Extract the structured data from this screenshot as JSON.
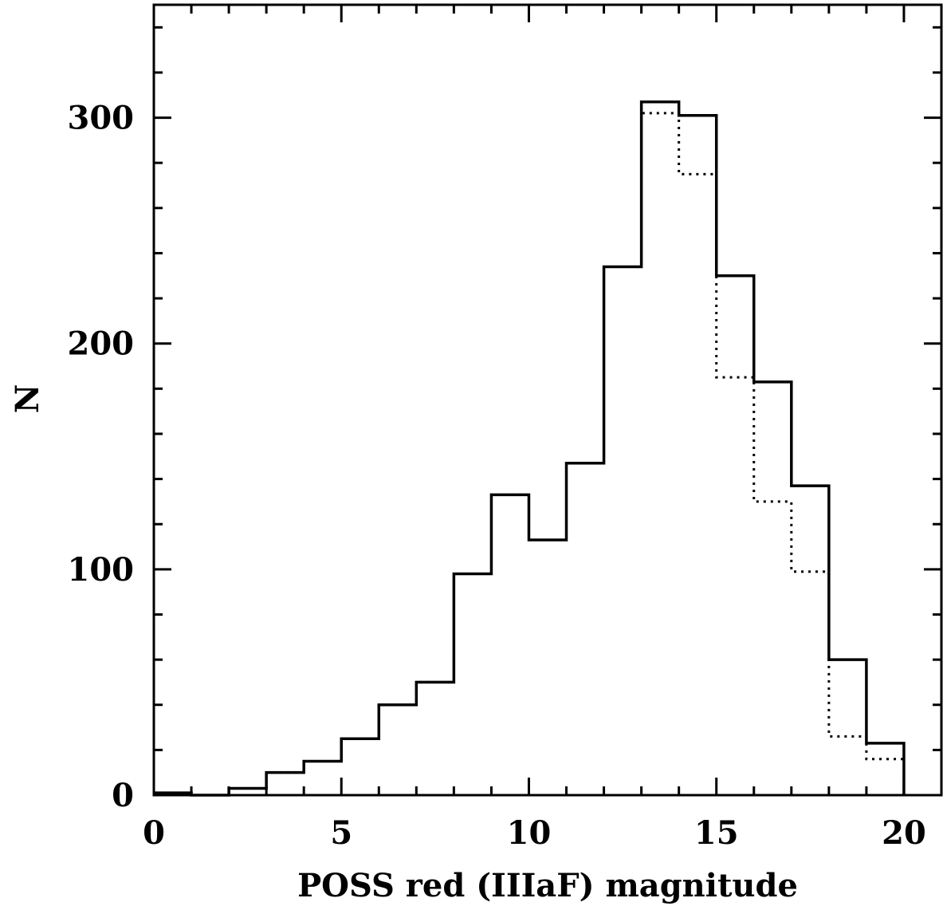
{
  "chart_data": {
    "type": "histogram",
    "xlabel": "POSS red (IIIaF) magnitude",
    "ylabel": "N",
    "xlim": [
      0,
      21
    ],
    "ylim": [
      0,
      350
    ],
    "x_ticks": [
      0,
      5,
      10,
      15,
      20
    ],
    "y_ticks": [
      0,
      100,
      200,
      300
    ],
    "bin_edges": [
      0,
      1,
      2,
      3,
      4,
      5,
      6,
      7,
      8,
      9,
      10,
      11,
      12,
      13,
      14,
      15,
      16,
      17,
      18,
      19,
      20
    ],
    "grid": false,
    "series": [
      {
        "style": "solid",
        "values": [
          1,
          0,
          3,
          10,
          15,
          25,
          40,
          50,
          98,
          133,
          113,
          147,
          234,
          307,
          301,
          230,
          183,
          137,
          60,
          23
        ]
      },
      {
        "style": "dotted",
        "values": [
          1,
          0,
          3,
          10,
          15,
          25,
          40,
          50,
          98,
          133,
          113,
          147,
          234,
          302,
          275,
          185,
          130,
          99,
          26,
          16
        ]
      }
    ]
  }
}
